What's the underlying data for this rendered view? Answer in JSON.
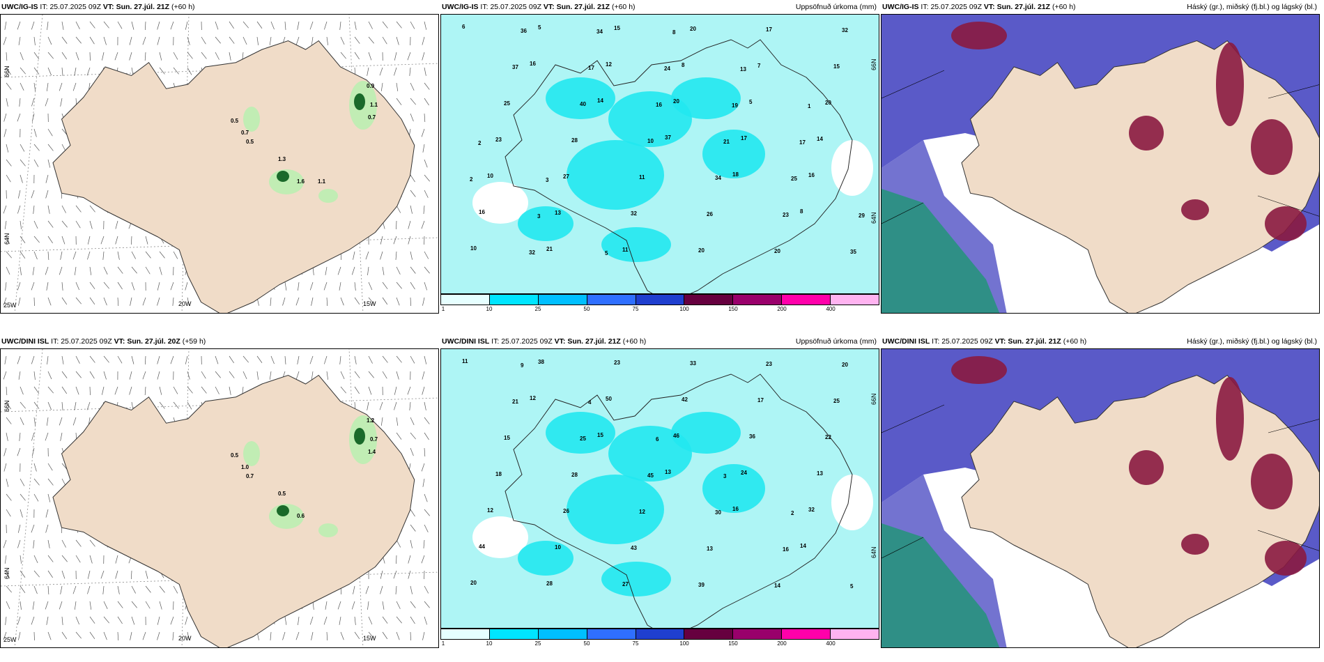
{
  "panels": [
    {
      "id": "p1",
      "model": "UWC/IG-IS",
      "it_label": "IT:",
      "it_value": "25.07.2025 09Z",
      "vt_label": "VT:",
      "vt_value": "Sun. 27.júl. 21Z",
      "lead": "(+60 h)",
      "right_title": "",
      "axis_labels": [
        "66N",
        "64N",
        "25W",
        "20W",
        "15W"
      ],
      "values": [
        "0.9",
        "1.1",
        "0.7",
        "0.5",
        "0.7",
        "0.5",
        "1.3",
        "1.6",
        "1.1"
      ]
    },
    {
      "id": "p2",
      "model": "UWC/IG-IS",
      "it_label": "IT:",
      "it_value": "25.07.2025 09Z",
      "vt_label": "VT:",
      "vt_value": "Sun. 27.júl. 21Z",
      "lead": "(+60 h)",
      "right_title": "Uppsöfnuð úrkoma (mm)",
      "axis_labels": [
        "66N",
        "64N"
      ],
      "values": [
        "6",
        "16",
        "14",
        "37",
        "18",
        "8",
        "10",
        "5",
        "12",
        "20",
        "17",
        "16",
        "16",
        "21",
        "15",
        "8",
        "5",
        "14",
        "10",
        "13",
        "11",
        "20",
        "7",
        "20",
        "23",
        "27",
        "32",
        "20",
        "17",
        "15",
        "25",
        "28",
        "11",
        "26",
        "20",
        "32",
        "37",
        "40",
        "10",
        "34",
        "23",
        "35",
        "36",
        "17",
        "16",
        "21",
        "25",
        "29",
        "32",
        "34",
        "24",
        "19",
        "17",
        "2",
        "3",
        "5",
        "8",
        "13",
        "1",
        "2",
        "3"
      ],
      "colorbar": {
        "colors": [
          "#e6ffff",
          "#00e5ff",
          "#00bfff",
          "#2f6fff",
          "#1f3fcf",
          "#66003f",
          "#99006b",
          "#ff00aa",
          "#ffb3f0"
        ],
        "ticks": [
          "1",
          "10",
          "25",
          "50",
          "75",
          "100",
          "150",
          "200",
          "400"
        ]
      }
    },
    {
      "id": "p3",
      "model": "UWC/IG-IS",
      "it_label": "IT:",
      "it_value": "25.07.2025 09Z",
      "vt_label": "VT:",
      "vt_value": "Sun. 27.júl. 21Z",
      "lead": "(+60 h)",
      "right_title": "Háský (gr.), miðský (fj.bl.) og lágský (bl.)"
    },
    {
      "id": "p4",
      "model": "UWC/DINI ISL",
      "it_label": "IT:",
      "it_value": "25.07.2025 09Z",
      "vt_label": "VT:",
      "vt_value": "Sun. 27.júl. 20Z",
      "lead": "(+59 h)",
      "right_title": "",
      "axis_labels": [
        "66N",
        "64N",
        "25W",
        "20W",
        "15W"
      ],
      "values": [
        "1.2",
        "0.7",
        "1.4",
        "0.5",
        "1.0",
        "0.7",
        "0.5",
        "0.6"
      ]
    },
    {
      "id": "p5",
      "model": "UWC/DINI ISL",
      "it_label": "IT:",
      "it_value": "25.07.2025 09Z",
      "vt_label": "VT:",
      "vt_value": "Sun. 27.júl. 21Z",
      "lead": "(+60 h)",
      "right_title": "Uppsöfnuð úrkoma (mm)",
      "axis_labels": [
        "66N",
        "64N"
      ],
      "values": [
        "11",
        "12",
        "15",
        "13",
        "16",
        "14",
        "20",
        "38",
        "50",
        "46",
        "24",
        "32",
        "44",
        "28",
        "23",
        "42",
        "36",
        "13",
        "12",
        "10",
        "27",
        "33",
        "17",
        "22",
        "18",
        "26",
        "43",
        "39",
        "23",
        "25",
        "15",
        "28",
        "12",
        "13",
        "14",
        "20",
        "21",
        "25",
        "45",
        "30",
        "16",
        "5",
        "9",
        "4",
        "6",
        "3",
        "2"
      ],
      "colorbar": {
        "colors": [
          "#e6ffff",
          "#00e5ff",
          "#00bfff",
          "#2f6fff",
          "#1f3fcf",
          "#66003f",
          "#99006b",
          "#ff00aa",
          "#ffb3f0"
        ],
        "ticks": [
          "1",
          "10",
          "25",
          "50",
          "75",
          "100",
          "150",
          "200",
          "400"
        ]
      }
    },
    {
      "id": "p6",
      "model": "UWC/DINI ISL",
      "it_label": "IT:",
      "it_value": "25.07.2025 09Z",
      "vt_label": "VT:",
      "vt_value": "Sun. 27.júl. 21Z",
      "lead": "(+60 h)",
      "right_title": "Háský (gr.), miðský (fj.bl.) og lágský (bl.)"
    }
  ],
  "colors": {
    "land": "#f0dcc8",
    "precip_light": "#aef5f5",
    "precip_mid": "#22e8f0",
    "cloud_mid": "#5a5ac8",
    "cloud_low_edge": "#6fa0ff",
    "cloud_high": "#8a1a40",
    "sea_teal": "#2f8f86",
    "wind_precip_green": "#b8f0b0",
    "wind_precip_dark": "#1a6a2a"
  }
}
